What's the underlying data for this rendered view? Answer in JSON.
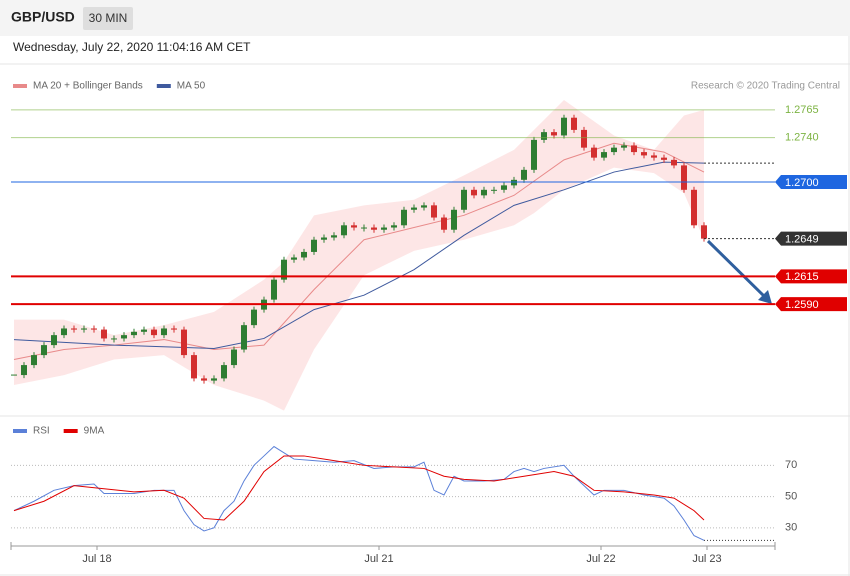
{
  "chart_data": {
    "type": "candlestick",
    "title": "GBP/USD",
    "timeframe": "30 MIN",
    "subtitle": "Wednesday, July 22, 2020 11:04:16 AM CET",
    "source": "Research © 2020 Trading Central",
    "xlim": [
      -0.3,
      76.1
    ],
    "xticks": [
      {
        "value": 8.3,
        "label": "Jul 18"
      },
      {
        "value": 36.5,
        "label": "Jul 21"
      },
      {
        "value": 58.7,
        "label": "Jul 22"
      },
      {
        "value": 69.3,
        "label": "Jul 23"
      }
    ],
    "ylim": [
      1.249,
      1.2801
    ],
    "up_color": "#2e7d32",
    "down_color": "#d32f2f",
    "close": [
      1.2526,
      1.2535,
      1.2544,
      1.2553,
      1.2562,
      1.2568,
      1.2567,
      1.2568,
      1.2567,
      1.2559,
      1.2559,
      1.2562,
      1.2565,
      1.2567,
      1.2562,
      1.2568,
      1.2567,
      1.2544,
      1.2523,
      1.2521,
      1.2523,
      1.2535,
      1.2549,
      1.2571,
      1.2585,
      1.2594,
      1.2612,
      1.263,
      1.2632,
      1.2637,
      1.2648,
      1.265,
      1.2652,
      1.2661,
      1.2659,
      1.2659,
      1.2657,
      1.2659,
      1.2661,
      1.2675,
      1.2677,
      1.2679,
      1.2668,
      1.2657,
      1.2675,
      1.2693,
      1.2688,
      1.2693,
      1.2693,
      1.2697,
      1.2702,
      1.2711,
      1.2738,
      1.2745,
      1.2742,
      1.2758,
      1.2747,
      1.2731,
      1.2722,
      1.2727,
      1.2731,
      1.2733,
      1.2727,
      1.2724,
      1.2722,
      1.272,
      1.2715,
      1.2693,
      1.2661,
      1.2649
    ],
    "bands": {
      "color": "#fde2e2",
      "x": [
        0,
        5,
        10,
        15,
        20,
        25,
        27,
        30,
        35,
        40,
        45,
        50,
        52,
        55,
        60,
        64,
        67,
        69
      ],
      "upper": [
        1.2576,
        1.2576,
        1.2562,
        1.2571,
        1.2583,
        1.2612,
        1.2628,
        1.267,
        1.2679,
        1.2684,
        1.2706,
        1.2729,
        1.2747,
        1.2774,
        1.2742,
        1.2729,
        1.276,
        1.2765
      ],
      "lower": [
        1.2517,
        1.2526,
        1.254,
        1.2544,
        1.2517,
        1.2503,
        1.2494,
        1.2549,
        1.2616,
        1.2638,
        1.2648,
        1.2661,
        1.2672,
        1.2693,
        1.2713,
        1.2708,
        1.269,
        1.2648
      ]
    },
    "series": [
      {
        "name": "MA 20 + Bollinger Bands",
        "color": "#e88a8a",
        "x": [
          0,
          5,
          10,
          15,
          20,
          25,
          30,
          35,
          40,
          45,
          50,
          55,
          60,
          65,
          69
        ],
        "values": [
          1.254,
          1.2549,
          1.2553,
          1.2558,
          1.2549,
          1.2553,
          1.2603,
          1.2648,
          1.2659,
          1.267,
          1.2688,
          1.272,
          1.2735,
          1.2727,
          1.2709
        ]
      },
      {
        "name": "MA 50",
        "color": "#3f5a9e",
        "x": [
          0,
          10,
          20,
          25,
          30,
          35,
          40,
          45,
          50,
          55,
          60,
          65,
          69
        ],
        "values": [
          1.2558,
          1.2553,
          1.255,
          1.2559,
          1.2585,
          1.2598,
          1.2621,
          1.2652,
          1.2679,
          1.2693,
          1.2709,
          1.2718,
          1.2717
        ]
      }
    ],
    "levels": [
      {
        "value": 1.2765,
        "color": "#7cb342",
        "boxed": false
      },
      {
        "value": 1.274,
        "label": "1.2740",
        "color": "#7cb342",
        "boxed": false
      },
      {
        "value": 1.27,
        "label": "1.2700",
        "color": "#1e66e0",
        "boxed": true
      },
      {
        "value": 1.2649,
        "color": "#333333",
        "boxed": true,
        "style": "dotted"
      },
      {
        "value": 1.2615,
        "color": "#e00000",
        "boxed": true
      },
      {
        "value": 1.259,
        "label": "1.2590",
        "color": "#e00000",
        "boxed": true
      }
    ],
    "rsi": {
      "ylim": [
        19,
        83
      ],
      "yticks": [
        30,
        50,
        70
      ],
      "series": [
        {
          "name": "RSI",
          "color": "#5b80d8",
          "x": [
            0,
            2,
            4,
            6,
            8,
            9,
            12,
            14,
            16,
            17,
            18,
            19,
            20,
            21,
            22,
            23,
            24,
            25,
            26,
            27,
            28,
            30,
            32,
            34,
            36,
            38,
            40,
            41,
            42,
            43,
            44,
            45,
            47,
            49,
            50,
            51,
            52,
            53,
            55,
            56,
            57,
            58,
            59,
            61,
            63,
            65,
            66,
            67,
            68,
            69
          ],
          "values": [
            41,
            47,
            54,
            57,
            58,
            52,
            52,
            54,
            54,
            41,
            32,
            28,
            30,
            41,
            47,
            60,
            70,
            76,
            82,
            78,
            74,
            73,
            72,
            73,
            68,
            69,
            69,
            72,
            54,
            51,
            63,
            60,
            60,
            61,
            66,
            68,
            66,
            68,
            70,
            63,
            57,
            51,
            54,
            54,
            51,
            49,
            44,
            35,
            25,
            22
          ]
        },
        {
          "name": "9MA",
          "color": "#e00000",
          "x": [
            0,
            3,
            6,
            9,
            12,
            15,
            17,
            19,
            21,
            23,
            25,
            27,
            29,
            32,
            35,
            38,
            41,
            43,
            45,
            48,
            51,
            54,
            56,
            58,
            61,
            64,
            66,
            68,
            69
          ],
          "values": [
            41,
            47,
            57,
            55,
            53,
            54,
            49,
            36,
            35,
            47,
            66,
            76,
            76,
            73,
            70,
            69,
            68,
            63,
            61,
            60,
            63,
            66,
            63,
            54,
            53,
            51,
            49,
            41,
            35
          ]
        }
      ]
    }
  }
}
